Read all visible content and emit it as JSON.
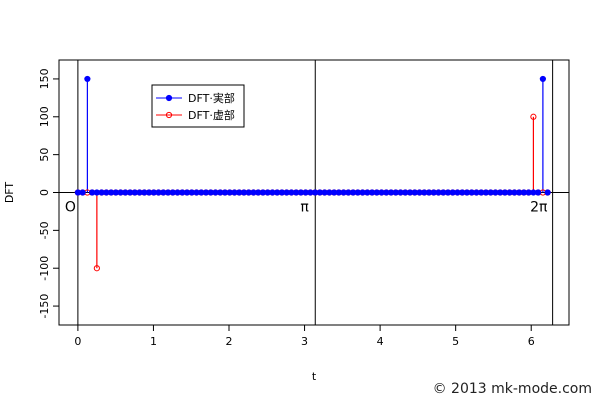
{
  "chart_data": {
    "type": "scatter",
    "xlabel": "t",
    "ylabel": "DFT",
    "xlim": [
      -0.25,
      6.5
    ],
    "ylim": [
      -175,
      175
    ],
    "x_ticks": [
      0,
      1,
      2,
      3,
      4,
      5,
      6
    ],
    "y_ticks": [
      -150,
      -100,
      -50,
      0,
      50,
      100,
      150
    ],
    "n_points": 100,
    "x_step": 0.0628,
    "vertical_lines": [
      0,
      3.1416,
      6.2832
    ],
    "annotations": [
      {
        "text": "O",
        "x": -0.1,
        "y": -25
      },
      {
        "text": "π",
        "x": 3.0,
        "y": -25
      },
      {
        "text": "2π",
        "x": 6.1,
        "y": -25
      }
    ],
    "series": [
      {
        "name": "DFT·実部",
        "color": "#0000ff",
        "marker": "filled-circle",
        "nonzero": [
          {
            "index": 2,
            "value": 150
          },
          {
            "index": 98,
            "value": 150
          }
        ]
      },
      {
        "name": "DFT·虚部",
        "color": "#ff0000",
        "marker": "open-circle",
        "nonzero": [
          {
            "index": 4,
            "value": -100
          },
          {
            "index": 96,
            "value": 100
          }
        ]
      }
    ],
    "legend_position": "top-left"
  },
  "copyright": "© 2013 mk-mode.com"
}
